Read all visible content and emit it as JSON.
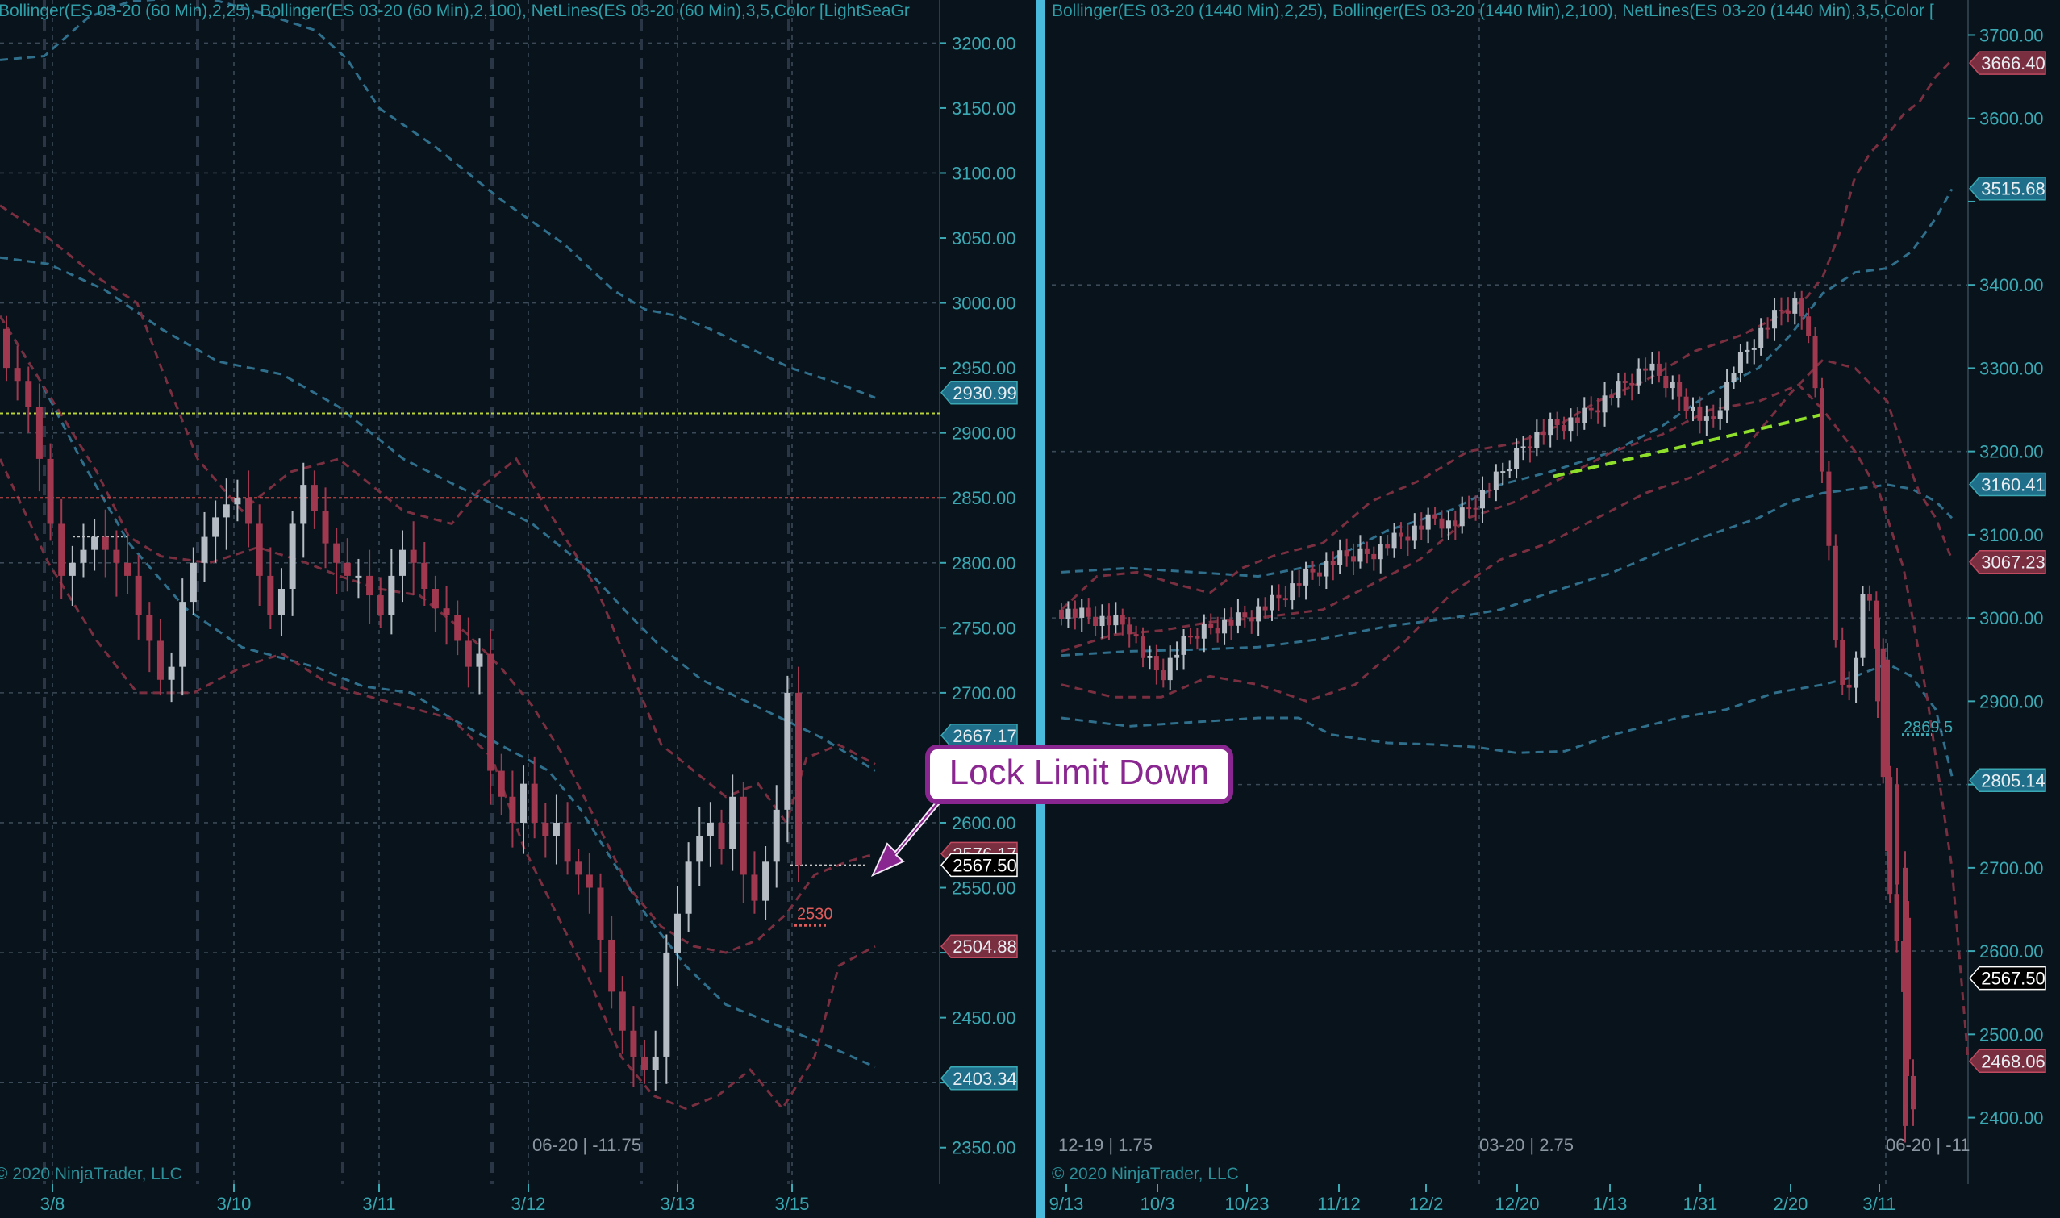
{
  "colors": {
    "background": "#09131b",
    "divider": "#49b9dc",
    "axis_text": "#3aa9b4",
    "bb25": "#7a2f40",
    "bb100": "#2f6f8c",
    "candle_up": "#b5bcc4",
    "candle_down": "#a0394f",
    "hline_yellow": "#b8d23a",
    "hline_red": "#d24a4a",
    "trend_green": "#8fe02a",
    "callout_border": "#8a2690",
    "callout_text": "#8a2690"
  },
  "annotation": {
    "text": "Lock Limit Down"
  },
  "chart_data": [
    {
      "type": "candlestick",
      "header": "Bollinger(ES 03-20 (60 Min),2,25), Bollinger(ES 03-20 (60 Min),2,100), NetLines(ES 03-20 (60 Min),3,5,Color [LightSeaGr",
      "ylim": [
        2325,
        3235
      ],
      "y_ticks": [
        3200,
        3150,
        3100,
        3050,
        3000,
        2950,
        2900,
        2850,
        2800,
        2750,
        2700,
        2650,
        2600,
        2550,
        2500,
        2450,
        2400,
        2350
      ],
      "y_tick_labels": [
        "3200.00",
        "3150.00",
        "3100.00",
        "3050.00",
        "3000.00",
        "2950.00",
        "2900.00",
        "2850.00",
        "2800.00",
        "2750.00",
        "2700.00",
        "",
        "2600.00",
        "2550.00",
        "",
        "2450.00",
        "",
        "2350.00"
      ],
      "x_labels": [
        "3/8",
        "3/10",
        "3/11",
        "3/12",
        "3/13",
        "3/15"
      ],
      "price_markers": [
        {
          "label": "2930.99",
          "value": 2930.99,
          "color": "#1f6f8a"
        },
        {
          "label": "2667.17",
          "value": 2667.17,
          "color": "#1f6f8a"
        },
        {
          "label": "2576.17",
          "value": 2576.17,
          "color": "#7a2f40"
        },
        {
          "label": "2567.50",
          "value": 2567.5,
          "color": "#000000"
        },
        {
          "label": "2504.88",
          "value": 2504.88,
          "color": "#7a2f40"
        },
        {
          "label": "2403.34",
          "value": 2403.34,
          "color": "#1f6f8a"
        }
      ],
      "hlines": [
        {
          "value": 2915,
          "color": "#b8d23a"
        },
        {
          "value": 2850,
          "color": "#d24a4a"
        }
      ],
      "netline_label": {
        "text": "2530",
        "value": 2530
      },
      "footer": "06-20 | -11.75",
      "copyright": "© 2020 NinjaTrader, LLC",
      "closes": [
        2950,
        2940,
        2920,
        2880,
        2830,
        2790,
        2800,
        2810,
        2820,
        2810,
        2800,
        2790,
        2760,
        2740,
        2710,
        2720,
        2770,
        2800,
        2820,
        2835,
        2845,
        2850,
        2830,
        2790,
        2760,
        2780,
        2830,
        2860,
        2840,
        2815,
        2800,
        2790,
        2790,
        2775,
        2760,
        2790,
        2810,
        2800,
        2780,
        2765,
        2760,
        2740,
        2720,
        2730,
        2640,
        2620,
        2600,
        2630,
        2600,
        2590,
        2600,
        2570,
        2560,
        2550,
        2510,
        2470,
        2440,
        2420,
        2410,
        2420,
        2500,
        2530,
        2570,
        2590,
        2600,
        2580,
        2620,
        2560,
        2540,
        2570,
        2610,
        2700,
        2567.5
      ]
    },
    {
      "type": "candlestick",
      "header": "Bollinger(ES 03-20 (1440 Min),2,25), Bollinger(ES 03-20 (1440 Min),2,100), NetLines(ES 03-20 (1440 Min),3,5,Color [",
      "ylim": [
        2325,
        3745
      ],
      "y_ticks": [
        3700,
        3600,
        3500,
        3400,
        3300,
        3200,
        3100,
        3000,
        2900,
        2800,
        2700,
        2600,
        2500,
        2400
      ],
      "y_tick_labels": [
        "3700.00",
        "3600.00",
        "",
        "3400.00",
        "3300.00",
        "3200.00",
        "3100.00",
        "3000.00",
        "2900.00",
        "",
        "2700.00",
        "2600.00",
        "2500.00",
        "2400.00"
      ],
      "x_labels": [
        "9/13",
        "10/3",
        "10/23",
        "11/12",
        "12/2",
        "12/20",
        "1/13",
        "1/31",
        "2/20",
        "3/11"
      ],
      "price_markers": [
        {
          "label": "3666.40",
          "value": 3666.4,
          "color": "#7a2f40"
        },
        {
          "label": "3515.68",
          "value": 3515.68,
          "color": "#1f6f8a"
        },
        {
          "label": "3160.41",
          "value": 3160.41,
          "color": "#1f6f8a"
        },
        {
          "label": "3067.23",
          "value": 3067.23,
          "color": "#7a2f40"
        },
        {
          "label": "2805.14",
          "value": 2805.14,
          "color": "#1f6f8a"
        },
        {
          "label": "2567.50",
          "value": 2567.5,
          "color": "#000000"
        },
        {
          "label": "2468.06",
          "value": 2468.06,
          "color": "#7a2f40"
        }
      ],
      "netline_label": {
        "text": "2869.5",
        "value": 2869.5
      },
      "footers": [
        "12-19 | 1.75",
        "03-20 | 2.75",
        "06-20 | -11"
      ],
      "copyright": "© 2020 NinjaTrader, LLC"
    }
  ]
}
